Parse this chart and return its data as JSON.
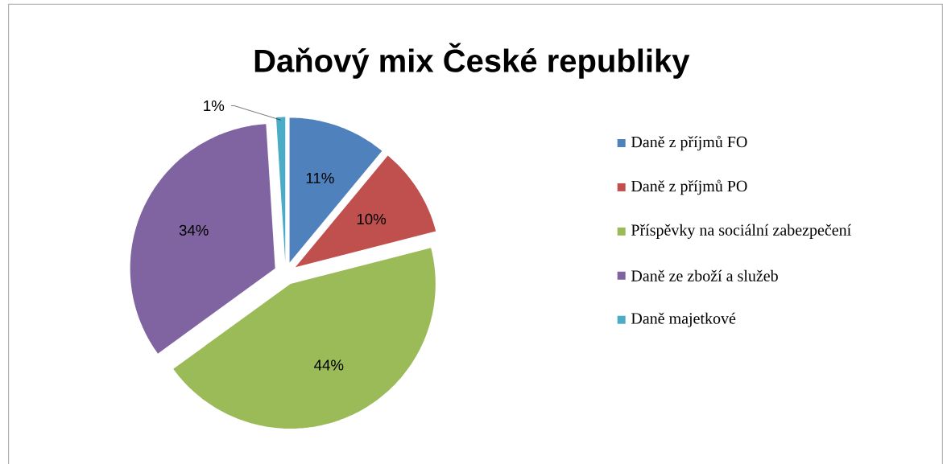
{
  "chart_data": {
    "type": "pie",
    "title": "Daňový mix České republiky",
    "categories": [
      "Daně z příjmů FO",
      "Daně z příjmů PO",
      "Příspěvky na sociální zabezpečení",
      "Daně ze zboží a služeb",
      "Daně majetkové"
    ],
    "values": [
      11,
      10,
      44,
      34,
      1
    ],
    "value_labels": [
      "11%",
      "10%",
      "44%",
      "34%",
      "1%"
    ],
    "colors": [
      "#4f81bd",
      "#c0504d",
      "#9bbb59",
      "#8064a2",
      "#4bacc6"
    ],
    "legend": "right"
  }
}
